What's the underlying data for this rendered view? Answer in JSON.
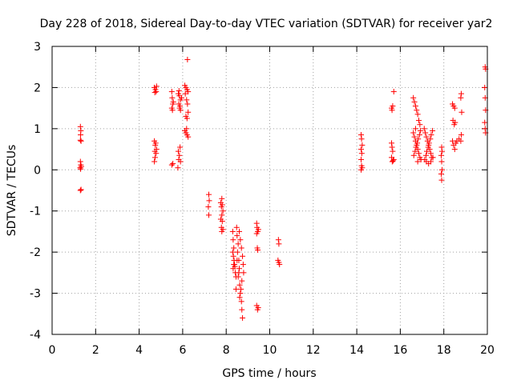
{
  "chart_data": {
    "type": "scatter",
    "title": "Day 228 of 2018, Sidereal Day-to-day VTEC variation (SDTVAR) for receiver yar2",
    "xlabel": "GPS time / hours",
    "ylabel": "SDTVAR / TECUs",
    "xlim": [
      0,
      20
    ],
    "ylim": [
      -4,
      3
    ],
    "xticks": [
      0,
      2,
      4,
      6,
      8,
      10,
      12,
      14,
      16,
      18,
      20
    ],
    "yticks": [
      -4,
      -3,
      -2,
      -1,
      0,
      1,
      2,
      3
    ],
    "xtick_labels": [
      "0",
      "2",
      "4",
      "6",
      "8",
      "10",
      "12",
      "14",
      "16",
      "18",
      "20"
    ],
    "ytick_labels": [
      "-4",
      "-3",
      "-2",
      "-1",
      "0",
      "1",
      "2",
      "3"
    ],
    "grid": true,
    "marker": "+",
    "marker_color": "#ff0000",
    "series": [
      {
        "name": "SDTVAR",
        "points": [
          [
            1.3,
            1.05
          ],
          [
            1.32,
            0.95
          ],
          [
            1.31,
            0.85
          ],
          [
            1.3,
            0.72
          ],
          [
            1.33,
            0.7
          ],
          [
            1.3,
            0.2
          ],
          [
            1.32,
            0.12
          ],
          [
            1.29,
            0.05
          ],
          [
            1.31,
            0.02
          ],
          [
            1.34,
            0.08
          ],
          [
            1.3,
            -0.5
          ],
          [
            1.33,
            -0.48
          ],
          [
            4.7,
            2.0
          ],
          [
            4.75,
            1.95
          ],
          [
            4.8,
            2.03
          ],
          [
            4.72,
            1.88
          ],
          [
            4.78,
            1.9
          ],
          [
            4.7,
            0.7
          ],
          [
            4.74,
            0.6
          ],
          [
            4.76,
            0.65
          ],
          [
            4.8,
            0.5
          ],
          [
            4.72,
            0.45
          ],
          [
            4.78,
            0.4
          ],
          [
            4.7,
            0.2
          ],
          [
            4.73,
            0.3
          ],
          [
            5.5,
            1.9
          ],
          [
            5.52,
            1.75
          ],
          [
            5.55,
            1.6
          ],
          [
            5.5,
            1.5
          ],
          [
            5.53,
            1.45
          ],
          [
            5.57,
            1.65
          ],
          [
            5.5,
            0.12
          ],
          [
            5.55,
            0.15
          ],
          [
            5.8,
            1.85
          ],
          [
            5.85,
            1.8
          ],
          [
            5.9,
            1.7
          ],
          [
            5.82,
            1.6
          ],
          [
            5.88,
            1.55
          ],
          [
            5.86,
            1.5
          ],
          [
            5.9,
            1.45
          ],
          [
            5.95,
            1.75
          ],
          [
            5.83,
            1.92
          ],
          [
            5.8,
            0.45
          ],
          [
            5.85,
            0.35
          ],
          [
            5.88,
            0.55
          ],
          [
            5.9,
            0.2
          ],
          [
            5.82,
            0.25
          ],
          [
            5.78,
            0.05
          ],
          [
            6.1,
            2.05
          ],
          [
            6.15,
            2.0
          ],
          [
            6.2,
            1.95
          ],
          [
            6.25,
            1.9
          ],
          [
            6.12,
            1.85
          ],
          [
            6.18,
            1.7
          ],
          [
            6.22,
            1.6
          ],
          [
            6.15,
            1.3
          ],
          [
            6.2,
            1.25
          ],
          [
            6.25,
            1.4
          ],
          [
            6.1,
            0.95
          ],
          [
            6.15,
            0.9
          ],
          [
            6.2,
            0.85
          ],
          [
            6.25,
            0.8
          ],
          [
            6.18,
            1.0
          ],
          [
            6.22,
            2.68
          ],
          [
            7.2,
            -0.6
          ],
          [
            7.22,
            -0.75
          ],
          [
            7.18,
            -0.9
          ],
          [
            7.2,
            -1.1
          ],
          [
            7.8,
            -0.7
          ],
          [
            7.75,
            -0.8
          ],
          [
            7.82,
            -0.85
          ],
          [
            7.78,
            -0.9
          ],
          [
            7.85,
            -1.0
          ],
          [
            7.8,
            -1.1
          ],
          [
            7.75,
            -1.2
          ],
          [
            7.82,
            -1.25
          ],
          [
            7.78,
            -1.4
          ],
          [
            7.85,
            -1.45
          ],
          [
            7.8,
            -1.5
          ],
          [
            8.3,
            -1.5
          ],
          [
            8.32,
            -1.7
          ],
          [
            8.35,
            -1.9
          ],
          [
            8.3,
            -2.0
          ],
          [
            8.33,
            -2.1
          ],
          [
            8.36,
            -2.2
          ],
          [
            8.38,
            -2.3
          ],
          [
            8.4,
            -2.35
          ],
          [
            8.42,
            -2.5
          ],
          [
            8.45,
            -2.6
          ],
          [
            8.35,
            -2.3
          ],
          [
            8.32,
            -2.4
          ],
          [
            8.48,
            -1.4
          ],
          [
            8.5,
            -1.6
          ],
          [
            8.55,
            -1.8
          ],
          [
            8.52,
            -2.0
          ],
          [
            8.58,
            -2.2
          ],
          [
            8.6,
            -2.4
          ],
          [
            8.55,
            -2.6
          ],
          [
            8.62,
            -2.8
          ],
          [
            8.65,
            -3.0
          ],
          [
            8.7,
            -3.2
          ],
          [
            8.72,
            -3.4
          ],
          [
            8.75,
            -3.6
          ],
          [
            8.6,
            -1.5
          ],
          [
            8.65,
            -1.7
          ],
          [
            8.7,
            -1.9
          ],
          [
            8.75,
            -2.1
          ],
          [
            8.78,
            -2.3
          ],
          [
            8.8,
            -2.5
          ],
          [
            8.72,
            -2.7
          ],
          [
            8.68,
            -2.9
          ],
          [
            8.62,
            -3.1
          ],
          [
            8.58,
            -2.5
          ],
          [
            8.5,
            -2.2
          ],
          [
            8.45,
            -2.9
          ],
          [
            9.4,
            -1.3
          ],
          [
            9.42,
            -1.4
          ],
          [
            9.45,
            -1.5
          ],
          [
            9.4,
            -1.55
          ],
          [
            9.48,
            -1.45
          ],
          [
            9.43,
            -1.9
          ],
          [
            9.45,
            -1.95
          ],
          [
            9.4,
            -3.3
          ],
          [
            9.44,
            -3.4
          ],
          [
            9.47,
            -3.35
          ],
          [
            10.4,
            -1.7
          ],
          [
            10.42,
            -1.8
          ],
          [
            10.38,
            -2.2
          ],
          [
            10.42,
            -2.25
          ],
          [
            10.45,
            -2.3
          ],
          [
            14.2,
            0.85
          ],
          [
            14.22,
            0.75
          ],
          [
            14.25,
            0.6
          ],
          [
            14.2,
            0.5
          ],
          [
            14.23,
            0.4
          ],
          [
            14.2,
            0.25
          ],
          [
            14.22,
            0.1
          ],
          [
            14.25,
            0.05
          ],
          [
            14.2,
            0.0
          ],
          [
            15.6,
            1.5
          ],
          [
            15.62,
            1.45
          ],
          [
            15.65,
            1.55
          ],
          [
            15.7,
            1.9
          ],
          [
            15.6,
            0.65
          ],
          [
            15.62,
            0.55
          ],
          [
            15.65,
            0.45
          ],
          [
            15.6,
            0.3
          ],
          [
            15.63,
            0.2
          ],
          [
            15.67,
            0.22
          ],
          [
            15.7,
            0.25
          ],
          [
            16.6,
            1.75
          ],
          [
            16.65,
            1.65
          ],
          [
            16.7,
            1.55
          ],
          [
            16.75,
            1.45
          ],
          [
            16.8,
            1.35
          ],
          [
            16.85,
            1.2
          ],
          [
            16.9,
            1.1
          ],
          [
            16.6,
            0.9
          ],
          [
            16.65,
            0.8
          ],
          [
            16.7,
            0.7
          ],
          [
            16.75,
            0.6
          ],
          [
            16.8,
            0.5
          ],
          [
            16.85,
            0.4
          ],
          [
            16.9,
            0.3
          ],
          [
            16.95,
            0.25
          ],
          [
            16.62,
            0.35
          ],
          [
            16.68,
            0.45
          ],
          [
            16.72,
            0.55
          ],
          [
            16.78,
            0.65
          ],
          [
            16.82,
            0.75
          ],
          [
            16.88,
            0.85
          ],
          [
            16.92,
            0.95
          ],
          [
            16.7,
            1.0
          ],
          [
            16.8,
            0.2
          ],
          [
            17.1,
            1.0
          ],
          [
            17.15,
            0.9
          ],
          [
            17.2,
            0.8
          ],
          [
            17.25,
            0.7
          ],
          [
            17.3,
            0.6
          ],
          [
            17.35,
            0.5
          ],
          [
            17.4,
            0.4
          ],
          [
            17.45,
            0.3
          ],
          [
            17.12,
            0.25
          ],
          [
            17.18,
            0.35
          ],
          [
            17.22,
            0.45
          ],
          [
            17.28,
            0.55
          ],
          [
            17.32,
            0.65
          ],
          [
            17.38,
            0.75
          ],
          [
            17.42,
            0.85
          ],
          [
            17.48,
            0.95
          ],
          [
            17.2,
            0.2
          ],
          [
            17.3,
            0.15
          ],
          [
            17.4,
            0.2
          ],
          [
            17.5,
            0.3
          ],
          [
            17.9,
            0.55
          ],
          [
            17.92,
            0.45
          ],
          [
            17.88,
            0.35
          ],
          [
            17.9,
            0.2
          ],
          [
            17.92,
            0.0
          ],
          [
            17.88,
            -0.1
          ],
          [
            17.9,
            -0.25
          ],
          [
            18.4,
            1.6
          ],
          [
            18.45,
            1.55
          ],
          [
            18.5,
            1.5
          ],
          [
            18.42,
            1.2
          ],
          [
            18.48,
            1.1
          ],
          [
            18.52,
            1.15
          ],
          [
            18.4,
            0.7
          ],
          [
            18.45,
            0.6
          ],
          [
            18.5,
            0.5
          ],
          [
            18.55,
            0.65
          ],
          [
            18.6,
            0.7
          ],
          [
            18.7,
            0.75
          ],
          [
            18.8,
            1.85
          ],
          [
            18.78,
            1.75
          ],
          [
            18.82,
            1.4
          ],
          [
            18.8,
            0.85
          ],
          [
            18.78,
            0.7
          ],
          [
            19.9,
            2.5
          ],
          [
            19.92,
            2.45
          ],
          [
            19.88,
            2.0
          ],
          [
            19.9,
            1.75
          ],
          [
            19.92,
            1.45
          ],
          [
            19.88,
            1.15
          ],
          [
            19.9,
            1.0
          ],
          [
            19.92,
            0.9
          ]
        ]
      }
    ]
  }
}
